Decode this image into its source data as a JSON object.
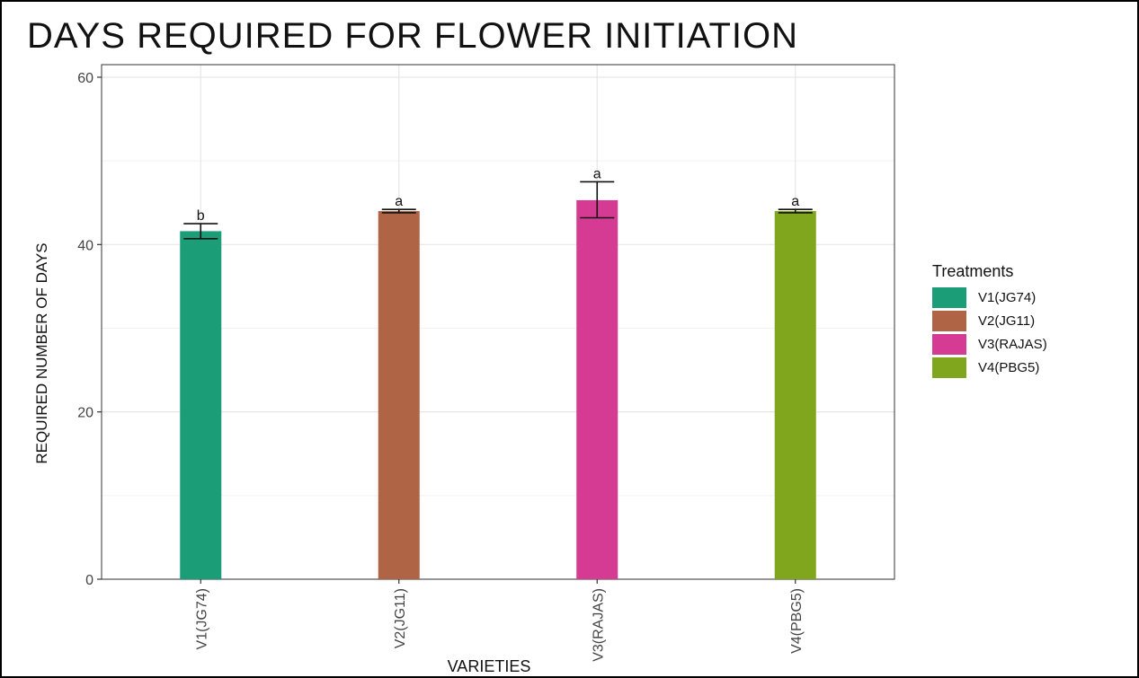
{
  "chart_data": {
    "type": "bar",
    "title": "DAYS REQUIRED FOR FLOWER INITIATION",
    "xlabel": "VARIETIES",
    "ylabel": "REQUIRED NUMBER OF DAYS",
    "ylim": [
      0,
      61.5
    ],
    "yticks": [
      0,
      20,
      40,
      60
    ],
    "categories": [
      "V1(JG74)",
      "V2(JG11)",
      "V3(RAJAS)",
      "V4(PBG5)"
    ],
    "values": [
      41.6,
      44.0,
      45.3,
      44.0
    ],
    "error_low": [
      40.7,
      43.8,
      43.2,
      43.8
    ],
    "error_high": [
      42.5,
      44.2,
      47.5,
      44.2
    ],
    "significance_letters": [
      "b",
      "a",
      "a",
      "a"
    ],
    "colors": [
      "#1b9e77",
      "#b06446",
      "#d63b94",
      "#7fa61c"
    ],
    "grid": true,
    "legend": {
      "title": "Treatments",
      "placement": "right",
      "items": [
        "V1(JG74)",
        "V2(JG11)",
        "V3(RAJAS)",
        "V4(PBG5)"
      ]
    }
  }
}
